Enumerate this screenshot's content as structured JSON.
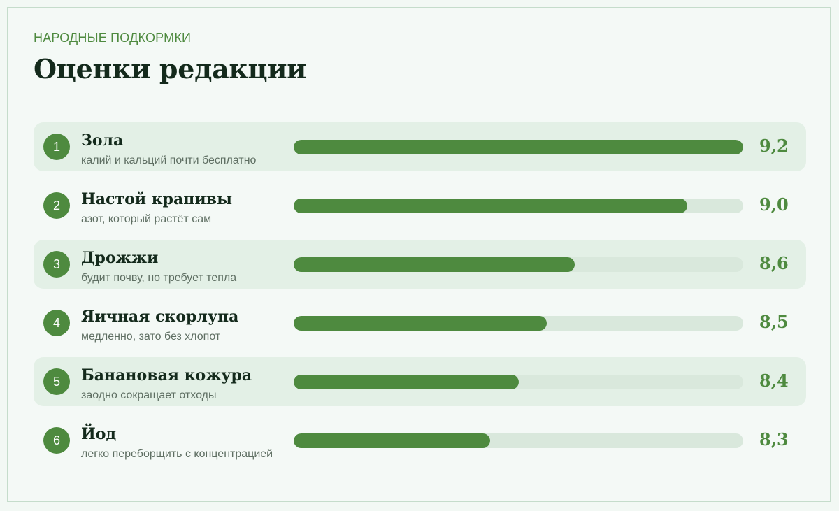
{
  "header": {
    "kicker": "НАРОДНЫЕ ПОДКОРМКИ",
    "title": "Оценки редакции"
  },
  "colors": {
    "accent": "#4e8a3f",
    "track": "#d9e8dc",
    "row_shade": "#e3f0e6",
    "background": "#f4f9f6",
    "heading": "#142a1c"
  },
  "chart_data": {
    "type": "bar",
    "orientation": "horizontal",
    "title": "Оценки редакции",
    "subtitle": "НАРОДНЫЕ ПОДКОРМКИ",
    "xlim": [
      7.6,
      9.2
    ],
    "items": [
      {
        "rank": "1",
        "name": "Зола",
        "note": "калий и кальций почти бесплатно",
        "value": 9.2,
        "value_label": "9,2"
      },
      {
        "rank": "2",
        "name": "Настой крапивы",
        "note": "азот, который растёт сам",
        "value": 9.0,
        "value_label": "9,0"
      },
      {
        "rank": "3",
        "name": "Дрожжи",
        "note": "будит почву, но требует тепла",
        "value": 8.6,
        "value_label": "8,6"
      },
      {
        "rank": "4",
        "name": "Яичная скорлупа",
        "note": "медленно, зато без хлопот",
        "value": 8.5,
        "value_label": "8,5"
      },
      {
        "rank": "5",
        "name": "Банановая кожура",
        "note": "заодно сокращает отходы",
        "value": 8.4,
        "value_label": "8,4"
      },
      {
        "rank": "6",
        "name": "Йод",
        "note": "легко переборщить с концентрацией",
        "value": 8.3,
        "value_label": "8,3"
      }
    ]
  }
}
